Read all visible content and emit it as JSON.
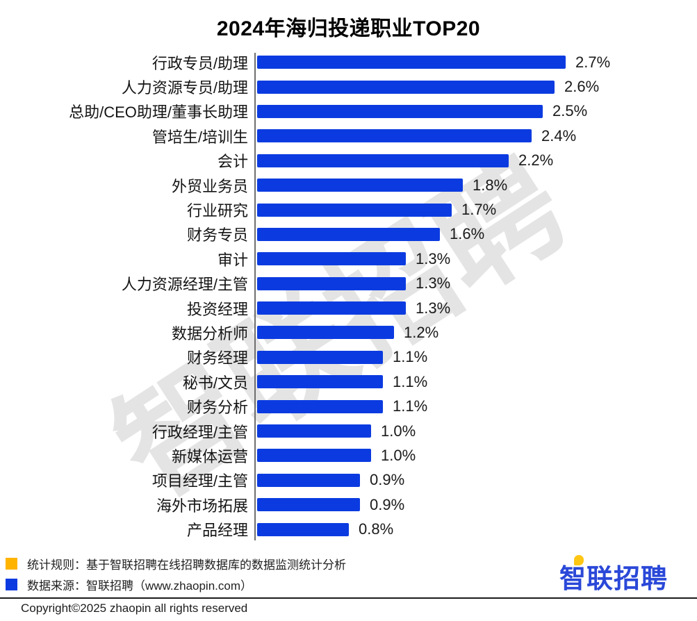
{
  "title": "2024年海归投递职业TOP20",
  "watermark": "智联招聘",
  "chart_data": {
    "type": "bar",
    "orientation": "horizontal",
    "title": "2024年海归投递职业TOP20",
    "xlabel": "",
    "ylabel": "",
    "xlim": [
      0,
      3
    ],
    "unit": "%",
    "grid": false,
    "legend": false,
    "bar_color": "#0b3be0",
    "categories": [
      "行政专员/助理",
      "人力资源专员/助理",
      "总助/CEO助理/董事长助理",
      "管培生/培训生",
      "会计",
      "外贸业务员",
      "行业研究",
      "财务专员",
      "审计",
      "人力资源经理/主管",
      "投资经理",
      "数据分析师",
      "财务经理",
      "秘书/文员",
      "财务分析",
      "行政经理/主管",
      "新媒体运营",
      "项目经理/主管",
      "海外市场拓展",
      "产品经理"
    ],
    "values": [
      2.7,
      2.6,
      2.5,
      2.4,
      2.2,
      1.8,
      1.7,
      1.6,
      1.3,
      1.3,
      1.3,
      1.2,
      1.1,
      1.1,
      1.1,
      1.0,
      1.0,
      0.9,
      0.9,
      0.8
    ],
    "value_labels": [
      "2.7%",
      "2.6%",
      "2.5%",
      "2.4%",
      "2.2%",
      "1.8%",
      "1.7%",
      "1.6%",
      "1.3%",
      "1.3%",
      "1.3%",
      "1.2%",
      "1.1%",
      "1.1%",
      "1.1%",
      "1.0%",
      "1.0%",
      "0.9%",
      "0.9%",
      "0.8%"
    ]
  },
  "footer": {
    "notes": [
      {
        "marker_color": "#ffb400",
        "text": "统计规则：基于智联招聘在线招聘数据库的数据监测统计分析"
      },
      {
        "marker_color": "#0b3be0",
        "text": "数据来源：智联招聘（www.zhaopin.com）"
      }
    ],
    "logo_text": "智联招聘",
    "copyright": "Copyright©2025 zhaopin all rights reserved"
  }
}
